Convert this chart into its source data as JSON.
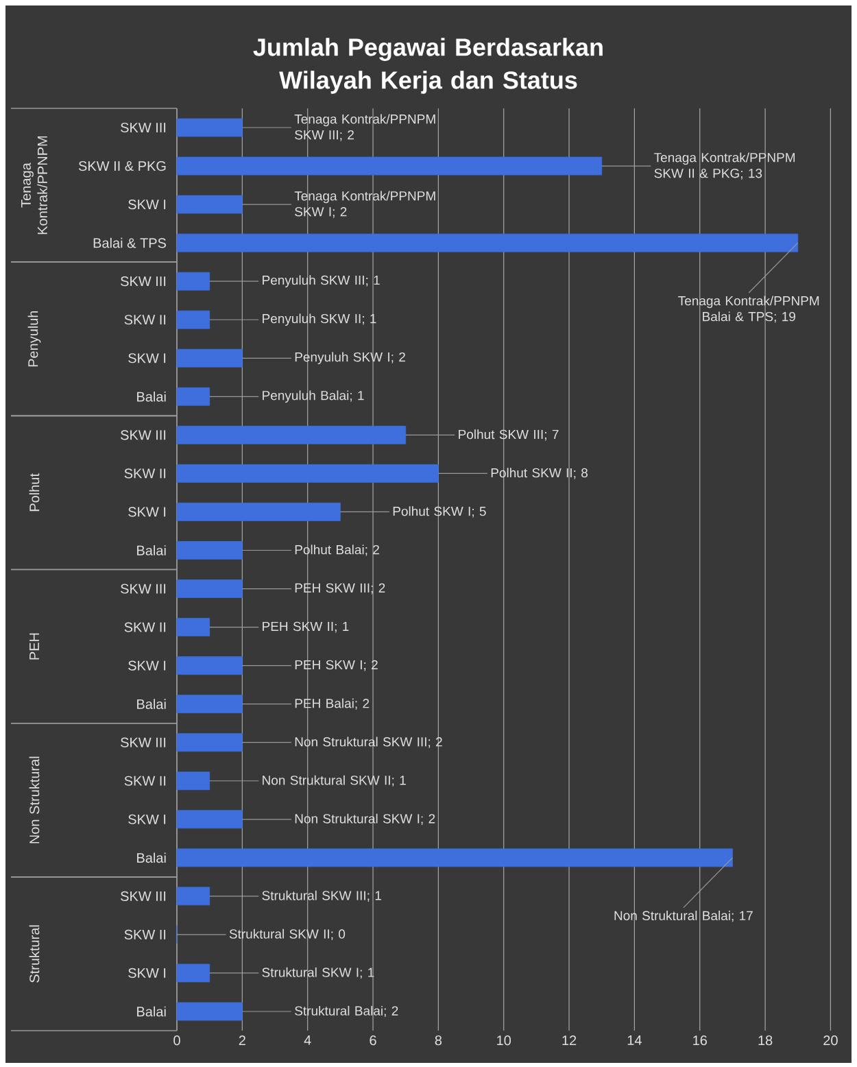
{
  "chart_data": {
    "type": "bar",
    "orientation": "horizontal",
    "title": "Jumlah Pegawai Berdasarkan Wilayah Kerja dan Status",
    "categories": [
      "SKW III",
      "SKW II & PKG",
      "SKW I",
      "Balai & TPS",
      "SKW III",
      "SKW II",
      "SKW I",
      "Balai",
      "SKW III",
      "SKW II",
      "SKW I",
      "Balai",
      "SKW III",
      "SKW II",
      "SKW I",
      "Balai",
      "SKW III",
      "SKW II",
      "SKW I",
      "Balai",
      "SKW III",
      "SKW II",
      "SKW I",
      "Balai"
    ],
    "values": [
      2,
      13,
      2,
      19,
      1,
      1,
      2,
      1,
      7,
      8,
      5,
      2,
      2,
      1,
      2,
      2,
      2,
      1,
      2,
      17,
      1,
      0,
      1,
      2
    ],
    "color": "#3f6fdc",
    "value_labels": [
      "Tenaga Kontrak/PPNPM SKW III; 2",
      "Tenaga Kontrak/PPNPM SKW II & PKG; 13",
      "Tenaga Kontrak/PPNPM SKW I; 2",
      "Tenaga Kontrak/PPNPM Balai & TPS; 19",
      "Penyuluh SKW III; 1",
      "Penyuluh SKW II; 1",
      "Penyuluh SKW I; 2",
      "Penyuluh Balai; 1",
      "Polhut SKW III; 7",
      "Polhut SKW II; 8",
      "Polhut SKW I; 5",
      "Polhut Balai; 2",
      "PEH SKW III; 2",
      "PEH SKW II; 1",
      "PEH SKW I; 2",
      "PEH Balai; 2",
      "Non Struktural SKW III; 2",
      "Non Struktural SKW II; 1",
      "Non Struktural SKW I; 2",
      "Non Struktural Balai; 17",
      "Struktural SKW III; 1",
      "Struktural SKW II; 0",
      "Struktural SKW I; 1",
      "Struktural Balai; 2"
    ],
    "annotations": [
      "Tenaga Kontrak/PPNPM",
      "Penyuluh",
      "Polhut",
      "PEH",
      "Non Struktural",
      "Struktural"
    ],
    "xlim": [
      0,
      20.6
    ],
    "xticks": [
      0,
      2,
      4,
      6,
      8,
      10,
      12,
      14,
      16,
      18,
      20
    ],
    "grid": "x"
  }
}
